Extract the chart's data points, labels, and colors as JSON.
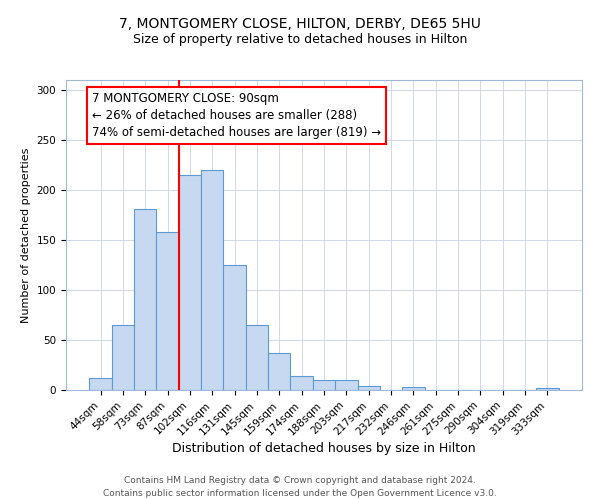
{
  "title": "7, MONTGOMERY CLOSE, HILTON, DERBY, DE65 5HU",
  "subtitle": "Size of property relative to detached houses in Hilton",
  "xlabel": "Distribution of detached houses by size in Hilton",
  "ylabel": "Number of detached properties",
  "categories": [
    "44sqm",
    "58sqm",
    "73sqm",
    "87sqm",
    "102sqm",
    "116sqm",
    "131sqm",
    "145sqm",
    "159sqm",
    "174sqm",
    "188sqm",
    "203sqm",
    "217sqm",
    "232sqm",
    "246sqm",
    "261sqm",
    "275sqm",
    "290sqm",
    "304sqm",
    "319sqm",
    "333sqm"
  ],
  "values": [
    12,
    65,
    181,
    158,
    215,
    220,
    125,
    65,
    37,
    14,
    10,
    10,
    4,
    0,
    3,
    0,
    0,
    0,
    0,
    0,
    2
  ],
  "bar_color": "#c7d9f0",
  "bar_edge_color": "#5b9bd5",
  "vline_x": 3.5,
  "vline_color": "red",
  "annotation_title": "7 MONTGOMERY CLOSE: 90sqm",
  "annotation_line1": "← 26% of detached houses are smaller (288)",
  "annotation_line2": "74% of semi-detached houses are larger (819) →",
  "footer_line1": "Contains HM Land Registry data © Crown copyright and database right 2024.",
  "footer_line2": "Contains public sector information licensed under the Open Government Licence v3.0.",
  "ylim": [
    0,
    310
  ],
  "yticks": [
    0,
    50,
    100,
    150,
    200,
    250,
    300
  ],
  "title_fontsize": 10,
  "subtitle_fontsize": 9,
  "xlabel_fontsize": 9,
  "ylabel_fontsize": 8,
  "tick_fontsize": 7.5,
  "footer_fontsize": 6.5,
  "ann_fontsize": 8.5
}
